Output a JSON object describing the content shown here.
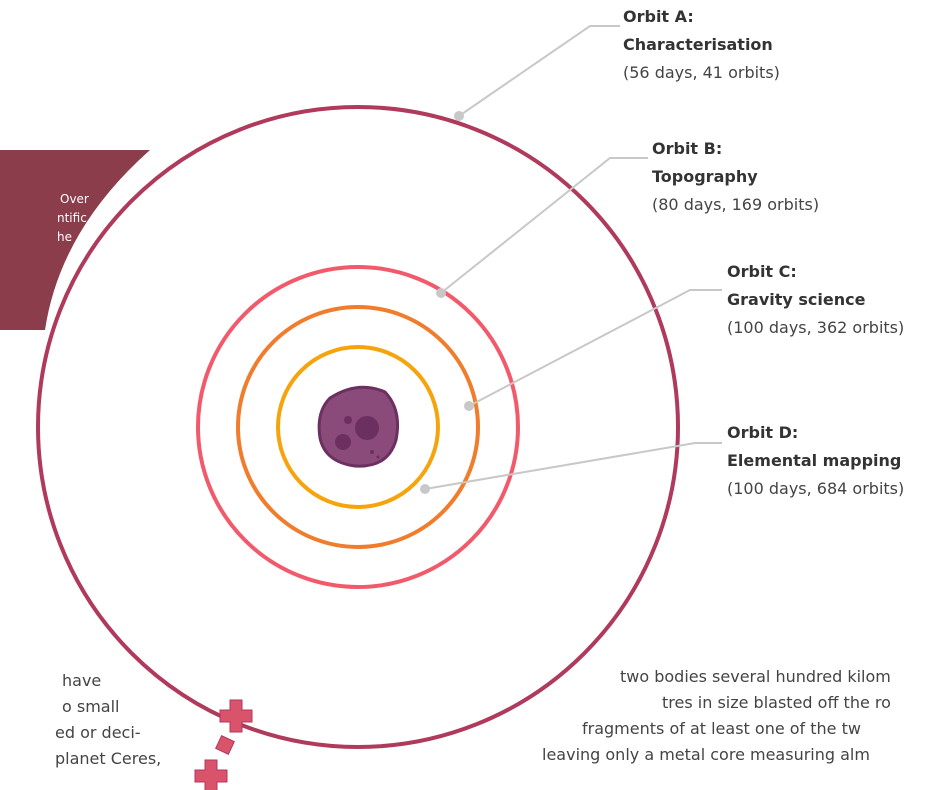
{
  "intro_fragment": {
    "lines": [
      "Over",
      "ntific",
      "he"
    ]
  },
  "orbits": [
    {
      "name": "Orbit A:",
      "title": "Characterisation",
      "detail": "(56 days, 41 orbits)"
    },
    {
      "name": "Orbit B:",
      "title": "Topography",
      "detail": "(80 days, 169 orbits)"
    },
    {
      "name": "Orbit C:",
      "title": "Gravity science",
      "detail": "(100 days, 362 orbits)"
    },
    {
      "name": "Orbit D:",
      "title": "Elemental mapping",
      "detail": "(100 days, 684 orbits)"
    }
  ],
  "left_text": {
    "lines": [
      "have",
      "o small",
      "ed or deci-",
      "planet Ceres,"
    ]
  },
  "right_text": {
    "lines": [
      "two bodies several hundred kilom",
      "tres in size blasted off the ro",
      "fragments of at least one of the tw",
      "leaving only a metal core measuring alm"
    ]
  }
}
